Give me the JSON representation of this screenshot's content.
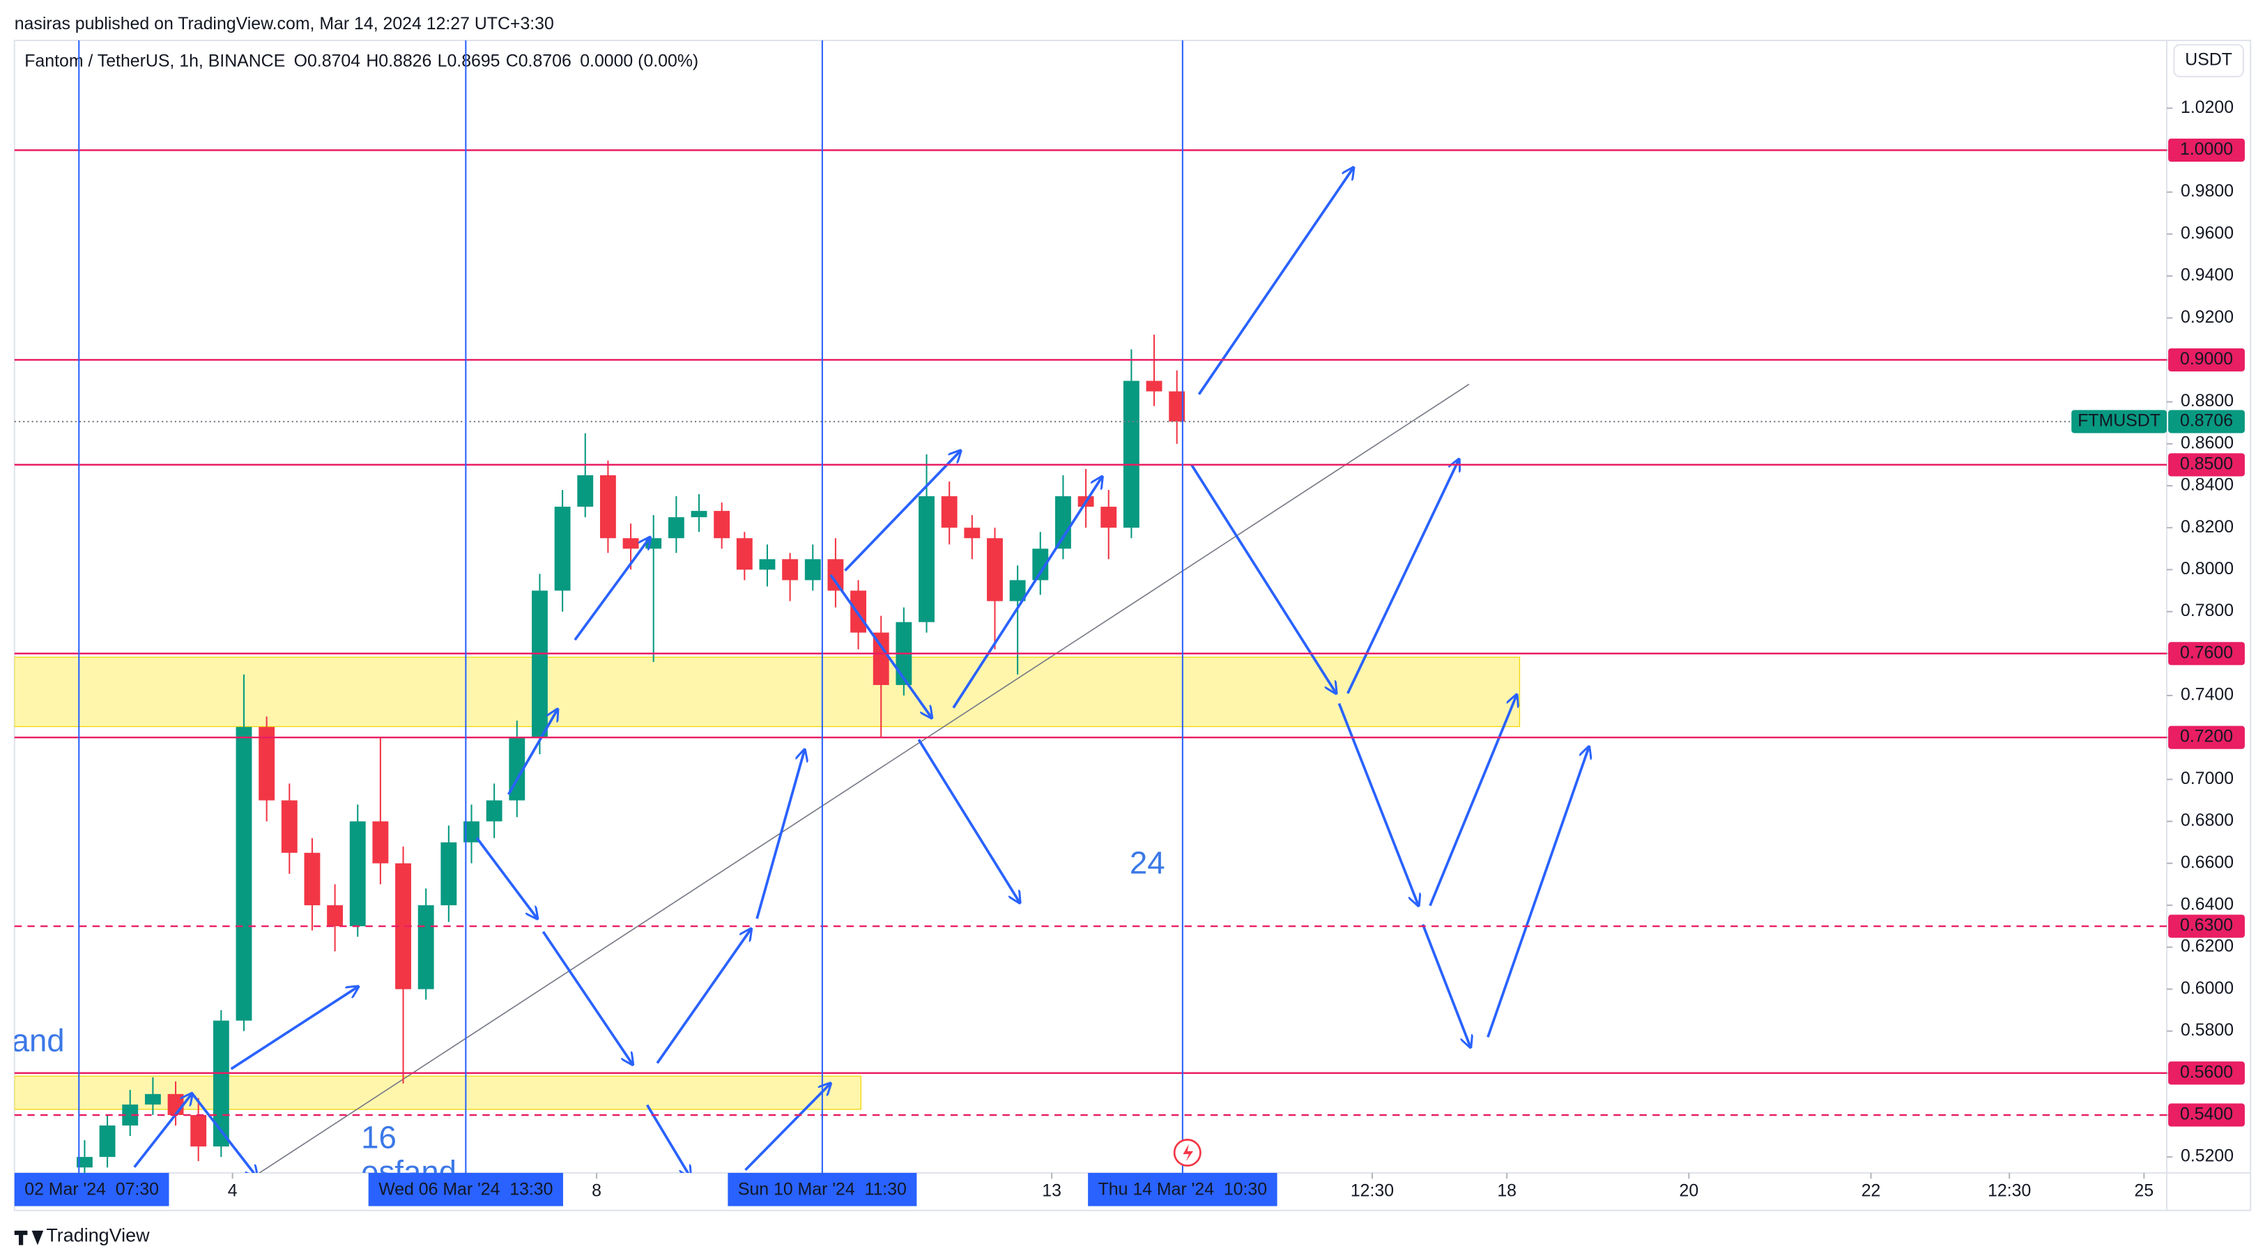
{
  "header": {
    "published": "nasiras published on TradingView.com, Mar 14, 2024 12:27 UTC+3:30",
    "symbol": "Fantom / TetherUS, 1h, BINANCE",
    "ohlc": [
      {
        "key": "O",
        "value": "0.8704"
      },
      {
        "key": "H",
        "value": "0.8826"
      },
      {
        "key": "L",
        "value": "0.8695"
      },
      {
        "key": "C",
        "value": "0.8706"
      }
    ],
    "change": "0.0000 (0.00%)",
    "currency": "USDT",
    "brand": "TradingView"
  },
  "chart_data": {
    "type": "candlestick",
    "up_color": "#089981",
    "down_color": "#f23645",
    "xlim": [
      14.5,
      582
    ],
    "ylim": [
      0.5124,
      1.0523
    ],
    "grid": false,
    "x": [
      33,
      39,
      45,
      51,
      57,
      63,
      69,
      75,
      81,
      87,
      93,
      99,
      105,
      111,
      117,
      123,
      129,
      135,
      141,
      147,
      153,
      159,
      165,
      171,
      177,
      183,
      189,
      195,
      201,
      207,
      213,
      219,
      225,
      231,
      237,
      243,
      249,
      255,
      261,
      267,
      273,
      279,
      285,
      291,
      297,
      303,
      309,
      315,
      321
    ],
    "open": [
      0.515,
      0.52,
      0.535,
      0.545,
      0.55,
      0.54,
      0.525,
      0.585,
      0.725,
      0.69,
      0.665,
      0.64,
      0.63,
      0.68,
      0.66,
      0.6,
      0.64,
      0.67,
      0.68,
      0.69,
      0.72,
      0.79,
      0.83,
      0.845,
      0.815,
      0.81,
      0.815,
      0.825,
      0.828,
      0.815,
      0.8,
      0.805,
      0.795,
      0.805,
      0.79,
      0.77,
      0.745,
      0.775,
      0.835,
      0.82,
      0.815,
      0.785,
      0.795,
      0.81,
      0.835,
      0.83,
      0.82,
      0.89,
      0.885
    ],
    "high": [
      0.528,
      0.54,
      0.552,
      0.558,
      0.556,
      0.548,
      0.59,
      0.75,
      0.73,
      0.698,
      0.672,
      0.65,
      0.688,
      0.72,
      0.668,
      0.648,
      0.678,
      0.688,
      0.698,
      0.728,
      0.798,
      0.838,
      0.865,
      0.852,
      0.822,
      0.826,
      0.835,
      0.836,
      0.832,
      0.818,
      0.812,
      0.808,
      0.812,
      0.815,
      0.795,
      0.778,
      0.782,
      0.855,
      0.842,
      0.826,
      0.82,
      0.802,
      0.818,
      0.845,
      0.848,
      0.838,
      0.905,
      0.912,
      0.895
    ],
    "low": [
      0.51,
      0.515,
      0.53,
      0.54,
      0.535,
      0.518,
      0.52,
      0.58,
      0.68,
      0.655,
      0.628,
      0.618,
      0.625,
      0.65,
      0.555,
      0.595,
      0.632,
      0.66,
      0.672,
      0.682,
      0.712,
      0.78,
      0.825,
      0.808,
      0.8,
      0.756,
      0.808,
      0.818,
      0.81,
      0.795,
      0.792,
      0.785,
      0.79,
      0.782,
      0.762,
      0.72,
      0.74,
      0.77,
      0.812,
      0.805,
      0.762,
      0.75,
      0.788,
      0.805,
      0.82,
      0.805,
      0.815,
      0.878,
      0.86
    ],
    "close": [
      0.52,
      0.535,
      0.545,
      0.55,
      0.54,
      0.525,
      0.585,
      0.725,
      0.69,
      0.665,
      0.64,
      0.63,
      0.68,
      0.66,
      0.6,
      0.64,
      0.67,
      0.68,
      0.69,
      0.72,
      0.79,
      0.83,
      0.845,
      0.815,
      0.81,
      0.815,
      0.825,
      0.828,
      0.815,
      0.8,
      0.805,
      0.795,
      0.805,
      0.79,
      0.77,
      0.745,
      0.775,
      0.835,
      0.82,
      0.815,
      0.785,
      0.795,
      0.81,
      0.835,
      0.83,
      0.82,
      0.89,
      0.885,
      0.8706
    ],
    "yticks": [
      {
        "value": 0.52,
        "label": "0.5200"
      },
      {
        "value": 0.54,
        "label": "0.5400"
      },
      {
        "value": 0.56,
        "label": "0.5600"
      },
      {
        "value": 0.58,
        "label": "0.5800"
      },
      {
        "value": 0.6,
        "label": "0.6000"
      },
      {
        "value": 0.62,
        "label": "0.6200"
      },
      {
        "value": 0.64,
        "label": "0.6400"
      },
      {
        "value": 0.66,
        "label": "0.6600"
      },
      {
        "value": 0.68,
        "label": "0.6800"
      },
      {
        "value": 0.7,
        "label": "0.7000"
      },
      {
        "value": 0.72,
        "label": "0.7200"
      },
      {
        "value": 0.74,
        "label": "0.7400"
      },
      {
        "value": 0.76,
        "label": "0.7600"
      },
      {
        "value": 0.78,
        "label": "0.7800"
      },
      {
        "value": 0.8,
        "label": "0.8000"
      },
      {
        "value": 0.82,
        "label": "0.8200"
      },
      {
        "value": 0.84,
        "label": "0.8400"
      },
      {
        "value": 0.86,
        "label": "0.8600"
      },
      {
        "value": 0.88,
        "label": "0.8800"
      },
      {
        "value": 0.9,
        "label": "0.9000"
      },
      {
        "value": 0.92,
        "label": "0.9200"
      },
      {
        "value": 0.94,
        "label": "0.9400"
      },
      {
        "value": 0.96,
        "label": "0.9600"
      },
      {
        "value": 0.98,
        "label": "0.9800"
      },
      {
        "value": 1.0,
        "label": "1.0000"
      },
      {
        "value": 1.02,
        "label": "1.0200"
      }
    ],
    "xticks": [
      {
        "value": 72,
        "label": "4"
      },
      {
        "value": 168,
        "label": "8"
      },
      {
        "value": 288,
        "label": "13"
      },
      {
        "value": 372.5,
        "label": "12:30"
      },
      {
        "value": 408,
        "label": "18"
      },
      {
        "value": 456,
        "label": "20"
      },
      {
        "value": 504,
        "label": "22"
      },
      {
        "value": 540.5,
        "label": "12:30"
      },
      {
        "value": 576,
        "label": "25"
      }
    ],
    "markers": [
      {
        "value": 31.5,
        "label": "02 Mar '24  07:30"
      },
      {
        "value": 133.5,
        "label": "Wed 06 Mar '24  13:30"
      },
      {
        "value": 227.5,
        "label": "Sun 10 Mar '24  11:30"
      },
      {
        "value": 322.5,
        "label": "Thu 14 Mar '24  10:30"
      }
    ],
    "levels": [
      {
        "value": 1.0,
        "label": "1.0000",
        "style": "solid"
      },
      {
        "value": 0.9,
        "label": "0.9000",
        "style": "solid"
      },
      {
        "value": 0.85,
        "label": "0.8500",
        "style": "solid"
      },
      {
        "value": 0.76,
        "label": "0.7600",
        "style": "solid"
      },
      {
        "value": 0.72,
        "label": "0.7200",
        "style": "solid"
      },
      {
        "value": 0.63,
        "label": "0.6300",
        "style": "dashed"
      },
      {
        "value": 0.56,
        "label": "0.5600",
        "style": "solid"
      },
      {
        "value": 0.54,
        "label": "0.5400",
        "style": "dashed"
      }
    ],
    "level_color": "#e91e63",
    "price_line": {
      "name": "FTMUSDT",
      "value": 0.8706,
      "label": "0.8706"
    },
    "annotations": [
      "24",
      "16",
      "esfand",
      "and"
    ]
  }
}
